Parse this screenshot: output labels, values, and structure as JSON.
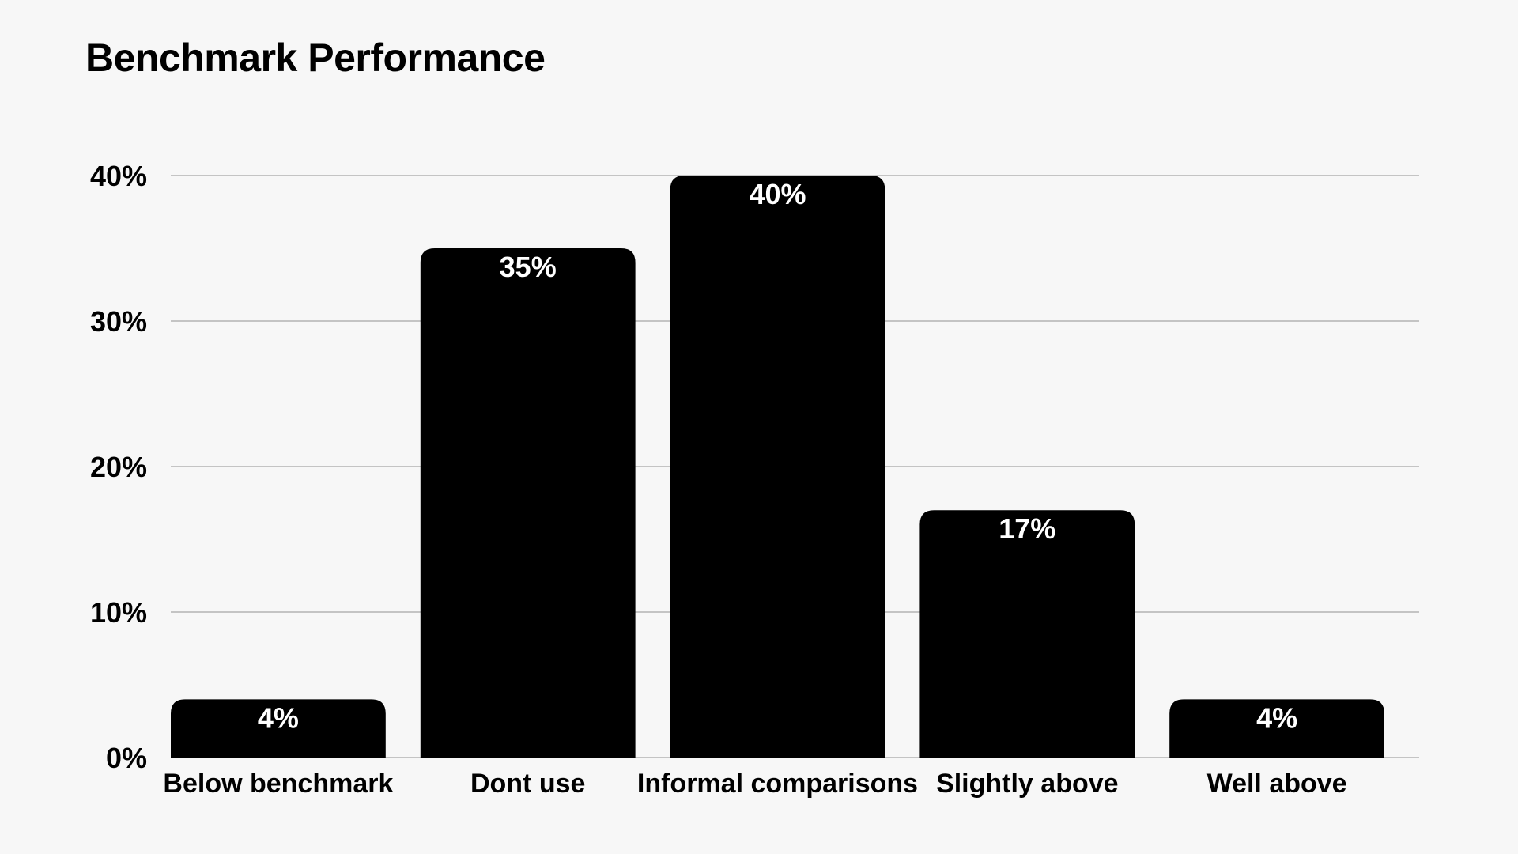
{
  "chart_data": {
    "type": "bar",
    "title": "Benchmark Performance",
    "xlabel": "",
    "ylabel": "",
    "categories": [
      "Below benchmark",
      "Dont use",
      "Informal comparisons",
      "Slightly above",
      "Well above"
    ],
    "values": [
      4,
      35,
      40,
      17,
      4
    ],
    "data_labels": [
      "4%",
      "35%",
      "40%",
      "17%",
      "4%"
    ],
    "ylim": [
      0,
      40
    ],
    "yticks": [
      0,
      10,
      20,
      30,
      40
    ],
    "ytick_labels": [
      "0%",
      "10%",
      "20%",
      "30%",
      "40%"
    ],
    "grid": true,
    "legend": "none",
    "colors": {
      "bar": "#000000",
      "data_label": "#ffffff",
      "grid": "#c4c4c4",
      "background": "#f7f7f7"
    }
  }
}
